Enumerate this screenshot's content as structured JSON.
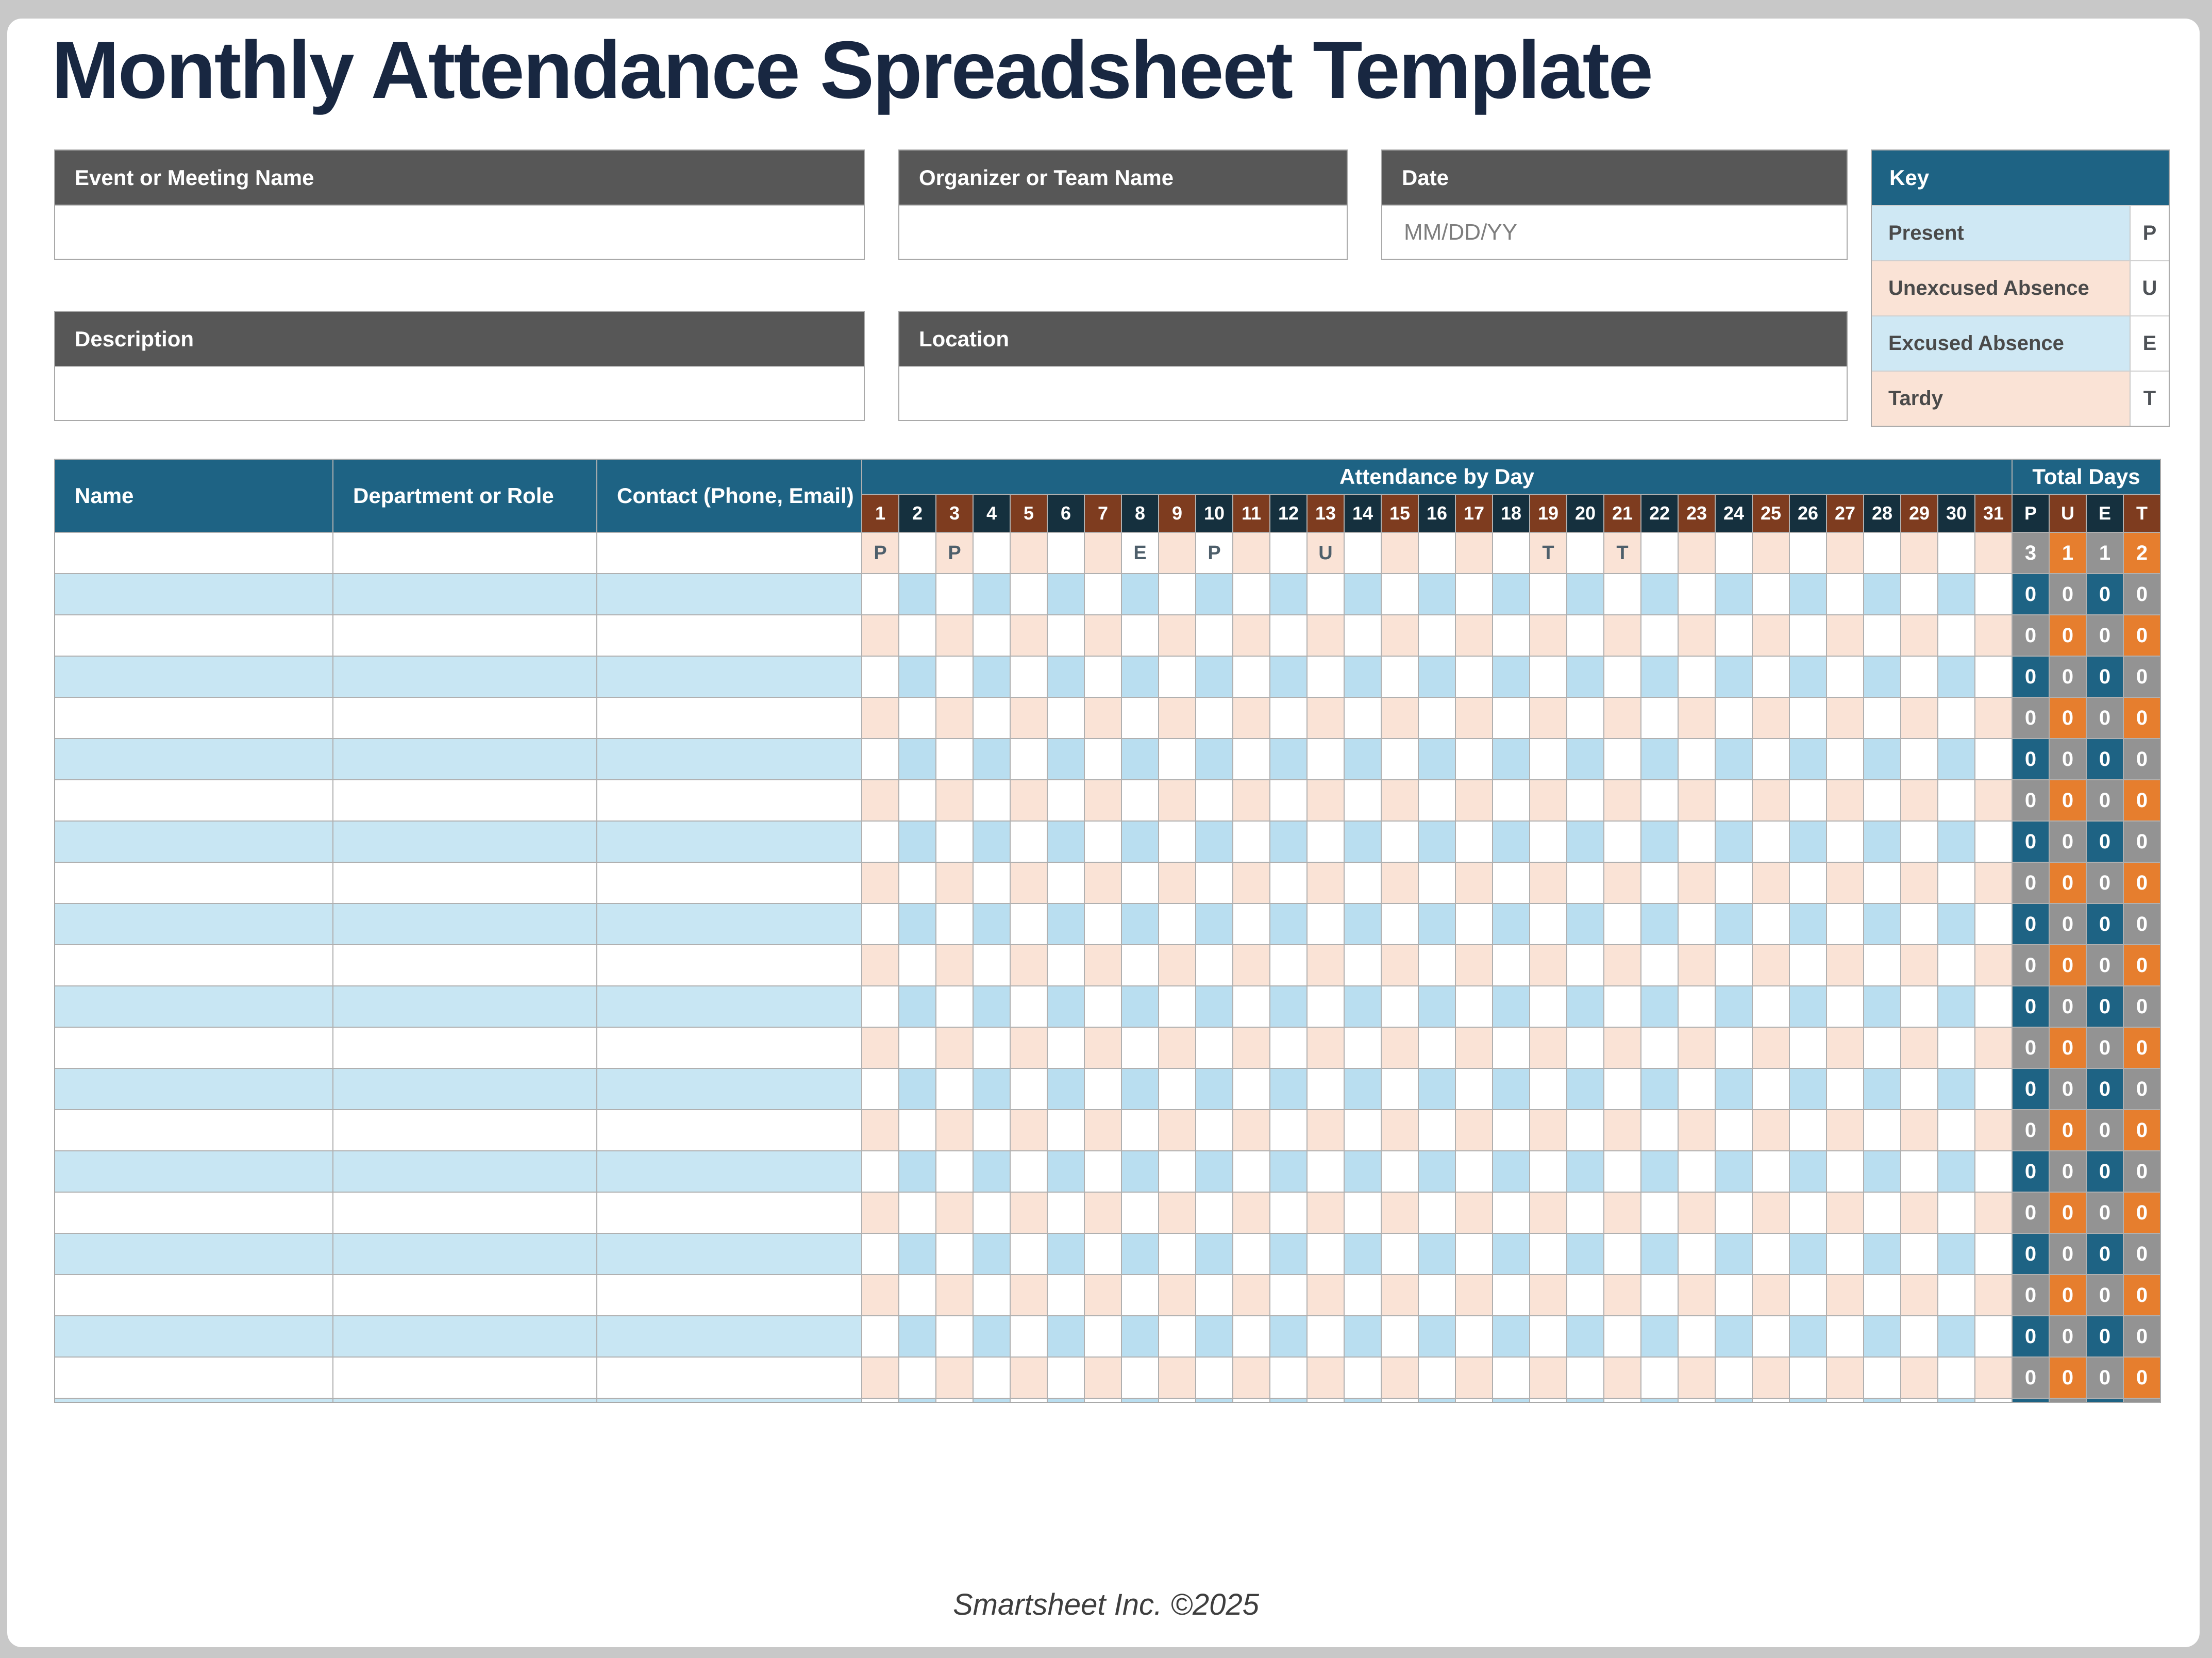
{
  "page": {
    "title": "Monthly Attendance Spreadsheet Template",
    "footer": "Smartsheet Inc. ©2025"
  },
  "form": {
    "event": {
      "label": "Event or Meeting Name",
      "value": ""
    },
    "organizer": {
      "label": "Organizer or Team Name",
      "value": ""
    },
    "date": {
      "label": "Date",
      "value": "MM/DD/YY"
    },
    "description": {
      "label": "Description",
      "value": ""
    },
    "location": {
      "label": "Location",
      "value": ""
    }
  },
  "key": {
    "title": "Key",
    "entries": [
      {
        "label": "Present",
        "code": "P"
      },
      {
        "label": "Unexcused Absence",
        "code": "U"
      },
      {
        "label": "Excused Absence",
        "code": "E"
      },
      {
        "label": "Tardy",
        "code": "T"
      }
    ]
  },
  "table": {
    "columns": [
      "Name",
      "Department or Role",
      "Contact (Phone, Email)"
    ],
    "day_group_label": "Attendance by Day",
    "totals_group_label": "Total Days",
    "days": [
      1,
      2,
      3,
      4,
      5,
      6,
      7,
      8,
      9,
      10,
      11,
      12,
      13,
      14,
      15,
      16,
      17,
      18,
      19,
      20,
      21,
      22,
      23,
      24,
      25,
      26,
      27,
      28,
      29,
      30,
      31
    ],
    "totals_headers": [
      "P",
      "U",
      "E",
      "T"
    ],
    "rows": [
      {
        "name": "",
        "department": "",
        "contact": "",
        "attendance": {
          "1": "P",
          "3": "P",
          "8": "E",
          "10": "P",
          "13": "U",
          "19": "T",
          "21": "T"
        },
        "totals": [
          3,
          1,
          1,
          2
        ]
      },
      {
        "name": "",
        "department": "",
        "contact": "",
        "attendance": {},
        "totals": [
          0,
          0,
          0,
          0
        ]
      },
      {
        "name": "",
        "department": "",
        "contact": "",
        "attendance": {},
        "totals": [
          0,
          0,
          0,
          0
        ]
      },
      {
        "name": "",
        "department": "",
        "contact": "",
        "attendance": {},
        "totals": [
          0,
          0,
          0,
          0
        ]
      },
      {
        "name": "",
        "department": "",
        "contact": "",
        "attendance": {},
        "totals": [
          0,
          0,
          0,
          0
        ]
      },
      {
        "name": "",
        "department": "",
        "contact": "",
        "attendance": {},
        "totals": [
          0,
          0,
          0,
          0
        ]
      },
      {
        "name": "",
        "department": "",
        "contact": "",
        "attendance": {},
        "totals": [
          0,
          0,
          0,
          0
        ]
      },
      {
        "name": "",
        "department": "",
        "contact": "",
        "attendance": {},
        "totals": [
          0,
          0,
          0,
          0
        ]
      },
      {
        "name": "",
        "department": "",
        "contact": "",
        "attendance": {},
        "totals": [
          0,
          0,
          0,
          0
        ]
      },
      {
        "name": "",
        "department": "",
        "contact": "",
        "attendance": {},
        "totals": [
          0,
          0,
          0,
          0
        ]
      },
      {
        "name": "",
        "department": "",
        "contact": "",
        "attendance": {},
        "totals": [
          0,
          0,
          0,
          0
        ]
      },
      {
        "name": "",
        "department": "",
        "contact": "",
        "attendance": {},
        "totals": [
          0,
          0,
          0,
          0
        ]
      },
      {
        "name": "",
        "department": "",
        "contact": "",
        "attendance": {},
        "totals": [
          0,
          0,
          0,
          0
        ]
      },
      {
        "name": "",
        "department": "",
        "contact": "",
        "attendance": {},
        "totals": [
          0,
          0,
          0,
          0
        ]
      },
      {
        "name": "",
        "department": "",
        "contact": "",
        "attendance": {},
        "totals": [
          0,
          0,
          0,
          0
        ]
      },
      {
        "name": "",
        "department": "",
        "contact": "",
        "attendance": {},
        "totals": [
          0,
          0,
          0,
          0
        ]
      },
      {
        "name": "",
        "department": "",
        "contact": "",
        "attendance": {},
        "totals": [
          0,
          0,
          0,
          0
        ]
      },
      {
        "name": "",
        "department": "",
        "contact": "",
        "attendance": {},
        "totals": [
          0,
          0,
          0,
          0
        ]
      },
      {
        "name": "",
        "department": "",
        "contact": "",
        "attendance": {},
        "totals": [
          0,
          0,
          0,
          0
        ]
      },
      {
        "name": "",
        "department": "",
        "contact": "",
        "attendance": {},
        "totals": [
          0,
          0,
          0,
          0
        ]
      },
      {
        "name": "",
        "department": "",
        "contact": "",
        "attendance": {},
        "totals": [
          0,
          0,
          0,
          0
        ]
      }
    ]
  },
  "colors": {
    "teal": "#1e6384",
    "navy": "#15303e",
    "rust": "#7e3c1f",
    "orange": "#e67e2e",
    "gray": "#939393",
    "row_blue": "#c8e6f3",
    "checker_blue": "#b9def0",
    "peach": "#fae3d6",
    "key_blue": "#cfe8f4",
    "header_gray": "#575757",
    "title_navy": "#182741",
    "page_bg": "#c8c8c8",
    "grid_line": "#b0b0b0",
    "border": "#a9a9a9",
    "letter": "#4e5f6b",
    "muted": "#7e7e7e",
    "footer": "#3e3e3e"
  }
}
